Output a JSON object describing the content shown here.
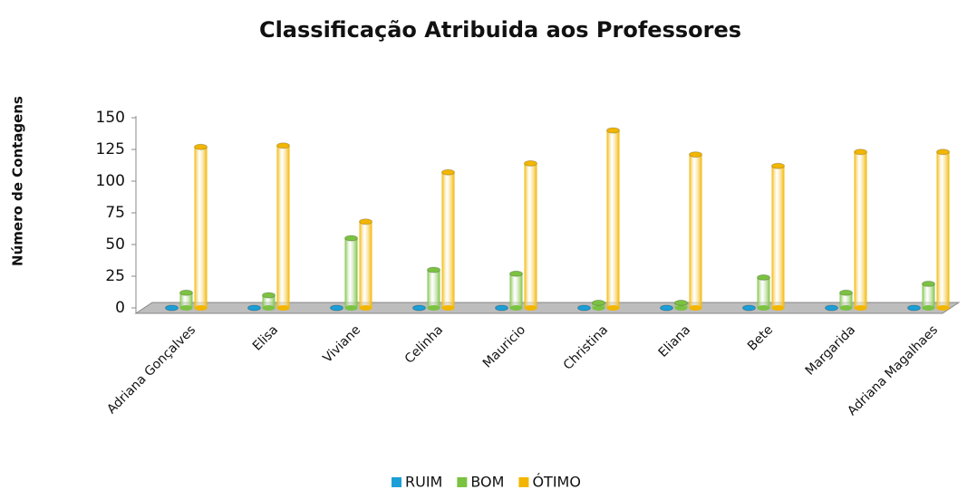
{
  "chart_data": {
    "type": "bar",
    "title": "Classificação Atribuida aos Professores",
    "y_label": "Número de Contagens",
    "categories": [
      "Adriana Gonçalves",
      "Elisa",
      "Viviane",
      "Celinha",
      "Mauricio",
      "Christina",
      "Eliana",
      "Bete",
      "Margarida",
      "Adriana Magalhaes"
    ],
    "series": [
      {
        "name": "RUIM",
        "color": "#1b9fd6",
        "values": [
          0,
          0,
          0,
          0,
          0,
          0,
          0,
          0,
          0,
          0
        ]
      },
      {
        "name": "BOM",
        "color": "#7cc242",
        "values": [
          12,
          10,
          55,
          30,
          27,
          4,
          4,
          24,
          12,
          19
        ]
      },
      {
        "name": "ÓTIMO",
        "color": "#f2b600",
        "values": [
          127,
          128,
          68,
          107,
          114,
          140,
          121,
          112,
          123,
          123
        ]
      }
    ],
    "ylim": [
      0,
      150
    ],
    "yticks": [
      0,
      25,
      50,
      75,
      100,
      125,
      150
    ],
    "legend": "bottom"
  }
}
